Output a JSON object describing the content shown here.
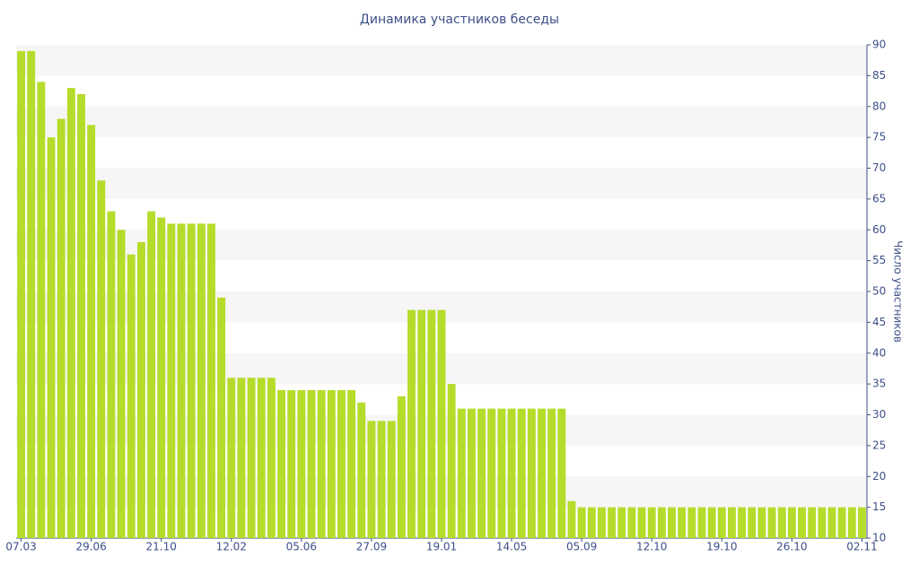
{
  "chart_data": {
    "type": "bar",
    "title": "Динамика участников беседы",
    "y_axis_title": "Число участников",
    "categories": [
      "07.03",
      null,
      null,
      null,
      null,
      null,
      null,
      "29.06",
      null,
      null,
      null,
      null,
      null,
      null,
      "21.10",
      null,
      null,
      null,
      null,
      null,
      null,
      "12.02",
      null,
      null,
      null,
      null,
      null,
      null,
      "05.06",
      null,
      null,
      null,
      null,
      null,
      null,
      "27.09",
      null,
      null,
      null,
      null,
      null,
      null,
      "19.01",
      null,
      null,
      null,
      null,
      null,
      null,
      "14.05",
      null,
      null,
      null,
      null,
      null,
      null,
      "05.09",
      null,
      null,
      null,
      null,
      null,
      null,
      "12.10",
      null,
      null,
      null,
      null,
      null,
      null,
      "19.10",
      null,
      null,
      null,
      null,
      null,
      null,
      "26.10",
      null,
      null,
      null,
      null,
      null,
      null,
      "02.11"
    ],
    "values": [
      89,
      89,
      84,
      75,
      78,
      83,
      82,
      77,
      68,
      63,
      60,
      56,
      58,
      63,
      62,
      61,
      61,
      61,
      61,
      61,
      49,
      36,
      36,
      36,
      36,
      36,
      34,
      34,
      34,
      34,
      34,
      34,
      34,
      34,
      32,
      29,
      29,
      29,
      33,
      47,
      47,
      47,
      47,
      35,
      31,
      31,
      31,
      31,
      31,
      31,
      31,
      31,
      31,
      31,
      31,
      16,
      15,
      15,
      15,
      15,
      15,
      15,
      15,
      15,
      15,
      15,
      15,
      15,
      15,
      15,
      15,
      15,
      15,
      15,
      15,
      15,
      15,
      15,
      15,
      15,
      15,
      15,
      15,
      15,
      15
    ],
    "color": "#b5dc2a",
    "ylim": [
      10,
      90
    ],
    "yticks": [
      10,
      15,
      20,
      25,
      30,
      35,
      40,
      45,
      50,
      55,
      60,
      65,
      70,
      75,
      80,
      85,
      90
    ],
    "grid": true
  }
}
